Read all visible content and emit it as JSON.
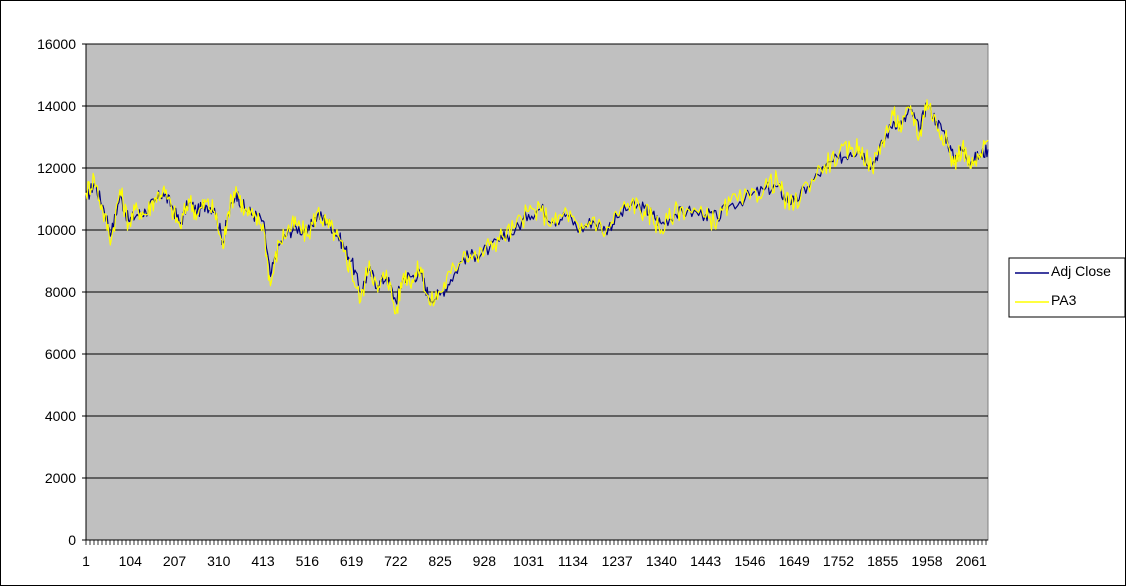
{
  "chart_data": {
    "type": "line",
    "title": "",
    "xlabel": "",
    "ylabel": "",
    "ylim": [
      0,
      16000
    ],
    "xlim": [
      1,
      2100
    ],
    "yticks": [
      0,
      2000,
      4000,
      6000,
      8000,
      10000,
      12000,
      14000,
      16000
    ],
    "xtick_labels": [
      "1",
      "104",
      "207",
      "310",
      "413",
      "516",
      "619",
      "722",
      "825",
      "928",
      "1031",
      "1134",
      "1237",
      "1340",
      "1443",
      "1546",
      "1649",
      "1752",
      "1855",
      "1958",
      "2061"
    ],
    "grid": "horizontal",
    "plot_background": "#c0c0c0",
    "legend_position": "right",
    "series": [
      {
        "name": "Adj Close",
        "color": "#000080",
        "x": [
          1,
          20,
          40,
          60,
          80,
          100,
          120,
          140,
          160,
          180,
          200,
          220,
          240,
          260,
          280,
          300,
          320,
          330,
          350,
          370,
          390,
          413,
          430,
          450,
          470,
          490,
          516,
          540,
          560,
          580,
          600,
          619,
          640,
          660,
          680,
          700,
          722,
          740,
          760,
          780,
          800,
          825,
          850,
          880,
          910,
          940,
          970,
          1000,
          1031,
          1060,
          1090,
          1120,
          1150,
          1180,
          1210,
          1237,
          1270,
          1300,
          1320,
          1340,
          1370,
          1400,
          1443,
          1470,
          1500,
          1546,
          1580,
          1610,
          1630,
          1649,
          1680,
          1720,
          1752,
          1780,
          1800,
          1830,
          1855,
          1880,
          1900,
          1920,
          1940,
          1958,
          1980,
          2000,
          2020,
          2040,
          2061,
          2080,
          2100
        ],
        "values": [
          11000,
          11500,
          10800,
          9900,
          11100,
          10300,
          10500,
          10600,
          10900,
          11200,
          10800,
          10200,
          10900,
          10600,
          10800,
          10700,
          9600,
          10400,
          11200,
          10700,
          10500,
          10300,
          8500,
          9500,
          9900,
          10100,
          9900,
          10500,
          10300,
          10000,
          9500,
          9000,
          8000,
          8700,
          8200,
          8500,
          7700,
          8500,
          8500,
          8600,
          7800,
          7900,
          8400,
          9100,
          9200,
          9400,
          9700,
          10000,
          10500,
          10700,
          10300,
          10500,
          10000,
          10300,
          10000,
          10400,
          10800,
          10700,
          10500,
          10200,
          10500,
          10600,
          10500,
          10400,
          10800,
          11100,
          11300,
          11400,
          11000,
          10900,
          11400,
          12000,
          12300,
          12500,
          12600,
          12100,
          12800,
          13500,
          13400,
          13900,
          13200,
          14100,
          13500,
          13100,
          12300,
          12600,
          12200,
          12400,
          12600
        ]
      },
      {
        "name": "PA3",
        "color": "#ffff00",
        "x": [
          1,
          20,
          40,
          60,
          80,
          100,
          120,
          140,
          160,
          180,
          200,
          220,
          240,
          260,
          280,
          300,
          320,
          330,
          350,
          370,
          390,
          413,
          430,
          450,
          470,
          490,
          516,
          540,
          560,
          580,
          600,
          619,
          640,
          660,
          680,
          700,
          722,
          740,
          760,
          780,
          800,
          825,
          850,
          880,
          910,
          940,
          970,
          1000,
          1031,
          1060,
          1090,
          1120,
          1150,
          1180,
          1210,
          1237,
          1270,
          1300,
          1320,
          1340,
          1370,
          1400,
          1443,
          1470,
          1500,
          1546,
          1580,
          1610,
          1630,
          1649,
          1680,
          1720,
          1752,
          1780,
          1800,
          1830,
          1855,
          1880,
          1900,
          1920,
          1940,
          1958,
          1980,
          2000,
          2020,
          2040,
          2061,
          2080,
          2100
        ],
        "values": [
          11200,
          11700,
          10600,
          9700,
          11300,
          10200,
          10700,
          10500,
          11000,
          11300,
          10700,
          10100,
          11000,
          10500,
          10900,
          10600,
          9400,
          10500,
          11400,
          10600,
          10400,
          10200,
          8200,
          9600,
          10000,
          10200,
          9800,
          10600,
          10200,
          9900,
          9300,
          8700,
          7700,
          9000,
          8000,
          8700,
          7300,
          8600,
          8400,
          8800,
          7600,
          8000,
          8600,
          9300,
          9100,
          9500,
          9800,
          10100,
          10600,
          10600,
          10200,
          10600,
          9900,
          10400,
          9900,
          10500,
          10900,
          10600,
          10400,
          10000,
          10600,
          10700,
          10400,
          10300,
          10900,
          11000,
          11400,
          11600,
          10900,
          10800,
          11500,
          12100,
          12400,
          12600,
          12700,
          12000,
          12900,
          13700,
          13300,
          14000,
          13000,
          14200,
          13400,
          13000,
          12100,
          12700,
          12000,
          12300,
          12900
        ]
      }
    ]
  }
}
